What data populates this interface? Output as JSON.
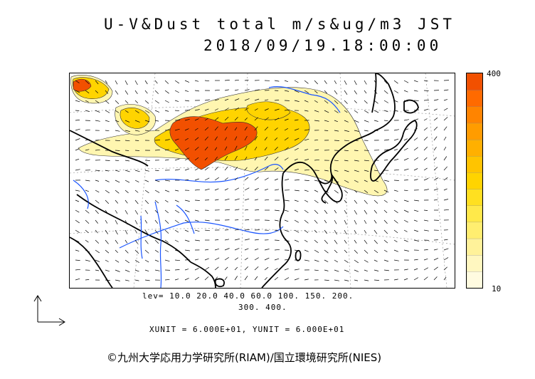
{
  "title": {
    "line1": "U-V&Dust total m/s&ug/m3 JST",
    "line2": "2018/09/19.18:00:00"
  },
  "colorbar": {
    "max_label": "400",
    "min_label": "10",
    "levels": [
      10,
      20,
      40,
      60,
      100,
      150,
      200,
      300,
      400
    ],
    "colors": [
      "#fffbe0",
      "#fff7c0",
      "#fff29a",
      "#ffee70",
      "#ffe94a",
      "#ffe020",
      "#ffd400",
      "#ffc400",
      "#ffb000",
      "#ff9c00",
      "#ff8400",
      "#ff6a00",
      "#f25000"
    ]
  },
  "levels_text": {
    "line1": "lev= 10.0 20.0 40.0 60.0 100. 150. 200.",
    "line2": "300. 400."
  },
  "units_text": "XUNIT = 6.000E+01, YUNIT = 6.000E+01",
  "copyright": "©九州大学応用力学研究所(RIAM)/国立環境研究所(NIES)",
  "map_colors": {
    "river": "#1a55ff",
    "coast": "#000000",
    "dust_high": "#f25000",
    "dust_mid": "#ffd400",
    "dust_low": "#fff6b0"
  }
}
